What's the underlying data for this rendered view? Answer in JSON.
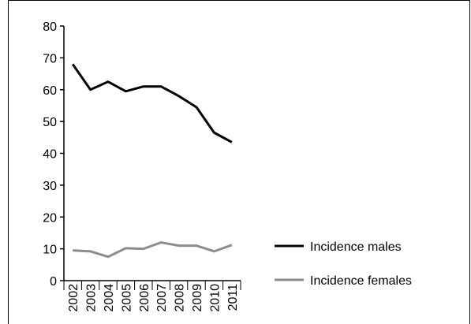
{
  "chart_data": {
    "type": "line",
    "categories": [
      "2002",
      "2003",
      "2004",
      "2005",
      "2006",
      "2007",
      "2008",
      "2009",
      "2010",
      "2011"
    ],
    "series": [
      {
        "name": "Incidence males",
        "color": "#000000",
        "values": [
          68,
          60,
          62.5,
          59.5,
          61,
          61,
          58,
          54.5,
          46.5,
          43.5
        ]
      },
      {
        "name": "Incidence females",
        "color": "#8c8c8c",
        "values": [
          9.5,
          9.2,
          7.5,
          10.2,
          10,
          12,
          11,
          11,
          9.2,
          11.2
        ]
      }
    ],
    "ylim": [
      0,
      80
    ],
    "yticks": [
      0,
      10,
      20,
      30,
      40,
      50,
      60,
      70,
      80
    ]
  }
}
